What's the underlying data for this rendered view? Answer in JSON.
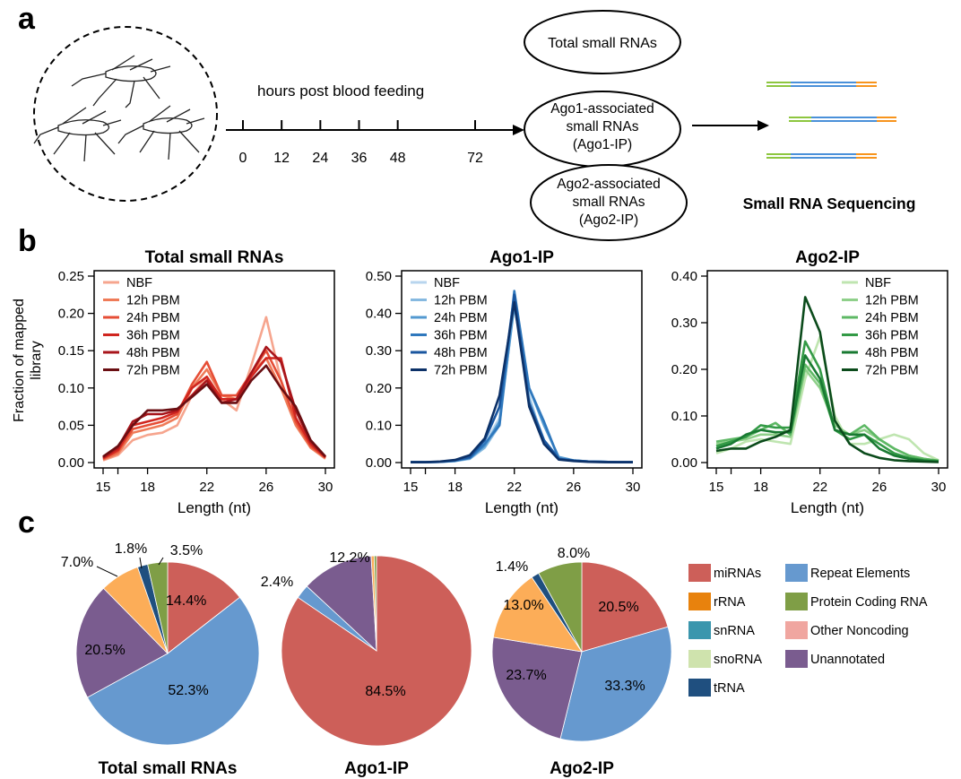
{
  "panel_labels": {
    "a": "a",
    "b": "b",
    "c": "c"
  },
  "schematic": {
    "timeline_label": "hours post blood feeding",
    "ticks": [
      "0",
      "12",
      "24",
      "36",
      "48",
      "72"
    ],
    "tick_values": [
      0,
      12,
      24,
      36,
      48,
      72
    ],
    "boxes": [
      [
        "Total small RNAs"
      ],
      [
        "Ago1-associated",
        "small RNAs",
        "(Ago1-IP)"
      ],
      [
        "Ago2-associated",
        "small RNAs",
        "(Ago2-IP)"
      ]
    ],
    "seq_label": "Small RNA Sequencing"
  },
  "colors": {
    "mirna": "#cd5f59",
    "rrna": "#e8820d",
    "snrna": "#3a96ad",
    "snorna": "#cfe3ad",
    "trna": "#1f4f7f",
    "repeat": "#6699cf",
    "protein_coding": "#7f9e46",
    "other_noncoding": "#f0a6a0",
    "unannotated": "#7a5c8f",
    "other": "#fcad58",
    "red_series": [
      "#f6a58e",
      "#ef7b58",
      "#e64e36",
      "#d0261f",
      "#a8151b",
      "#6a0e12"
    ],
    "blue_series": [
      "#b8d5ee",
      "#86b9e0",
      "#5399d0",
      "#2f78bd",
      "#1a569f",
      "#0c3168"
    ],
    "green_series": [
      "#bfe5b0",
      "#8fd08a",
      "#5eb865",
      "#339a46",
      "#197a32",
      "#0b4b1b"
    ]
  },
  "chart_data": [
    {
      "type": "line",
      "title": "Total small RNAs",
      "xlabel": "Length (nt)",
      "ylabel": "Fraction of mapped library",
      "x": [
        15,
        16,
        17,
        18,
        19,
        20,
        21,
        22,
        23,
        24,
        25,
        26,
        27,
        28,
        29,
        30
      ],
      "xticks": [
        15,
        18,
        22,
        26,
        30
      ],
      "ylim": [
        0,
        0.25
      ],
      "yticks": [
        "0.00",
        "0.05",
        "0.10",
        "0.15",
        "0.20",
        "0.25"
      ],
      "legend": "top-left",
      "series": [
        {
          "name": "NBF",
          "values": [
            0.003,
            0.01,
            0.03,
            0.037,
            0.04,
            0.05,
            0.09,
            0.115,
            0.085,
            0.07,
            0.13,
            0.195,
            0.11,
            0.055,
            0.02,
            0.005
          ]
        },
        {
          "name": "12h PBM",
          "values": [
            0.004,
            0.012,
            0.04,
            0.045,
            0.05,
            0.06,
            0.1,
            0.125,
            0.09,
            0.085,
            0.12,
            0.14,
            0.1,
            0.05,
            0.02,
            0.006
          ]
        },
        {
          "name": "24h PBM",
          "values": [
            0.005,
            0.015,
            0.045,
            0.05,
            0.055,
            0.065,
            0.105,
            0.135,
            0.09,
            0.09,
            0.12,
            0.15,
            0.11,
            0.055,
            0.022,
            0.007
          ]
        },
        {
          "name": "36h PBM",
          "values": [
            0.006,
            0.017,
            0.05,
            0.055,
            0.06,
            0.068,
            0.1,
            0.115,
            0.085,
            0.085,
            0.115,
            0.14,
            0.14,
            0.06,
            0.025,
            0.007
          ]
        },
        {
          "name": "48h PBM",
          "values": [
            0.007,
            0.02,
            0.055,
            0.065,
            0.065,
            0.07,
            0.09,
            0.11,
            0.08,
            0.085,
            0.12,
            0.155,
            0.135,
            0.07,
            0.028,
            0.008
          ]
        },
        {
          "name": "72h PBM",
          "values": [
            0.008,
            0.022,
            0.05,
            0.07,
            0.07,
            0.072,
            0.088,
            0.105,
            0.08,
            0.08,
            0.11,
            0.13,
            0.1,
            0.075,
            0.03,
            0.008
          ]
        }
      ]
    },
    {
      "type": "line",
      "title": "Ago1-IP",
      "xlabel": "Length (nt)",
      "x": [
        15,
        16,
        17,
        18,
        19,
        20,
        21,
        22,
        23,
        24,
        25,
        26,
        27,
        28,
        29,
        30
      ],
      "xticks": [
        15,
        18,
        22,
        26,
        30
      ],
      "ylim": [
        0,
        0.5
      ],
      "yticks": [
        "0.00",
        "0.10",
        "0.20",
        "0.30",
        "0.40",
        "0.50"
      ],
      "legend": "top-left",
      "series": [
        {
          "name": "NBF",
          "values": [
            0.001,
            0.001,
            0.002,
            0.005,
            0.01,
            0.05,
            0.12,
            0.44,
            0.18,
            0.05,
            0.01,
            0.005,
            0.003,
            0.002,
            0.001,
            0.001
          ]
        },
        {
          "name": "12h PBM",
          "values": [
            0.001,
            0.001,
            0.002,
            0.004,
            0.01,
            0.04,
            0.1,
            0.43,
            0.17,
            0.06,
            0.012,
            0.005,
            0.003,
            0.002,
            0.001,
            0.001
          ]
        },
        {
          "name": "24h PBM",
          "values": [
            0.001,
            0.001,
            0.002,
            0.004,
            0.012,
            0.045,
            0.11,
            0.42,
            0.2,
            0.1,
            0.015,
            0.006,
            0.003,
            0.002,
            0.001,
            0.001
          ]
        },
        {
          "name": "36h PBM",
          "values": [
            0.001,
            0.001,
            0.002,
            0.005,
            0.012,
            0.05,
            0.1,
            0.46,
            0.2,
            0.11,
            0.01,
            0.006,
            0.003,
            0.002,
            0.001,
            0.001
          ]
        },
        {
          "name": "48h PBM",
          "values": [
            0.001,
            0.001,
            0.002,
            0.006,
            0.015,
            0.06,
            0.15,
            0.45,
            0.16,
            0.06,
            0.01,
            0.005,
            0.003,
            0.002,
            0.001,
            0.001
          ]
        },
        {
          "name": "72h PBM",
          "values": [
            0.001,
            0.001,
            0.003,
            0.007,
            0.02,
            0.065,
            0.18,
            0.43,
            0.15,
            0.05,
            0.008,
            0.004,
            0.002,
            0.001,
            0.001,
            0.001
          ]
        }
      ]
    },
    {
      "type": "line",
      "title": "Ago2-IP",
      "xlabel": "Length (nt)",
      "x": [
        15,
        16,
        17,
        18,
        19,
        20,
        21,
        22,
        23,
        24,
        25,
        26,
        27,
        28,
        29,
        30
      ],
      "xticks": [
        15,
        18,
        22,
        26,
        30
      ],
      "ylim": [
        0,
        0.4
      ],
      "yticks": [
        "0.00",
        "0.10",
        "0.20",
        "0.30",
        "0.40"
      ],
      "legend": "top-right",
      "series": [
        {
          "name": "NBF",
          "values": [
            0.02,
            0.03,
            0.045,
            0.05,
            0.045,
            0.04,
            0.18,
            0.27,
            0.1,
            0.04,
            0.04,
            0.05,
            0.06,
            0.05,
            0.02,
            0.005
          ]
        },
        {
          "name": "12h PBM",
          "values": [
            0.04,
            0.045,
            0.05,
            0.06,
            0.06,
            0.055,
            0.2,
            0.16,
            0.08,
            0.06,
            0.07,
            0.05,
            0.03,
            0.015,
            0.008,
            0.004
          ]
        },
        {
          "name": "24h PBM",
          "values": [
            0.045,
            0.05,
            0.055,
            0.07,
            0.085,
            0.06,
            0.21,
            0.17,
            0.07,
            0.06,
            0.08,
            0.05,
            0.03,
            0.015,
            0.008,
            0.004
          ]
        },
        {
          "name": "36h PBM",
          "values": [
            0.035,
            0.045,
            0.055,
            0.08,
            0.075,
            0.075,
            0.26,
            0.2,
            0.07,
            0.05,
            0.06,
            0.04,
            0.02,
            0.01,
            0.005,
            0.003
          ]
        },
        {
          "name": "48h PBM",
          "values": [
            0.03,
            0.04,
            0.06,
            0.07,
            0.065,
            0.065,
            0.23,
            0.18,
            0.07,
            0.06,
            0.06,
            0.03,
            0.015,
            0.008,
            0.004,
            0.002
          ]
        },
        {
          "name": "72h PBM",
          "values": [
            0.025,
            0.03,
            0.03,
            0.045,
            0.055,
            0.07,
            0.355,
            0.28,
            0.09,
            0.04,
            0.02,
            0.01,
            0.005,
            0.003,
            0.002,
            0.001
          ]
        }
      ]
    },
    {
      "type": "pie",
      "title": "Total small RNAs",
      "slices": [
        {
          "key": "mirna",
          "value": 14.4,
          "label": "14.4%"
        },
        {
          "key": "repeat",
          "value": 52.3,
          "label": "52.3%"
        },
        {
          "key": "unannotated",
          "value": 20.5,
          "label": "20.5%"
        },
        {
          "key": "other",
          "value": 7.0,
          "label": "7.0%"
        },
        {
          "key": "trna",
          "value": 1.8,
          "label": "1.8%"
        },
        {
          "key": "protein_coding",
          "value": 3.5,
          "label": "3.5%"
        }
      ]
    },
    {
      "type": "pie",
      "title": "Ago1-IP",
      "slices": [
        {
          "key": "mirna",
          "value": 84.5,
          "label": "84.5%"
        },
        {
          "key": "repeat",
          "value": 2.4,
          "label": "2.4%"
        },
        {
          "key": "unannotated",
          "value": 12.2,
          "label": "12.2%"
        },
        {
          "key": "other",
          "value": 0.5,
          "label": ""
        },
        {
          "key": "protein_coding",
          "value": 0.4,
          "label": ""
        }
      ]
    },
    {
      "type": "pie",
      "title": "Ago2-IP",
      "slices": [
        {
          "key": "mirna",
          "value": 20.5,
          "label": "20.5%"
        },
        {
          "key": "repeat",
          "value": 33.3,
          "label": "33.3%"
        },
        {
          "key": "unannotated",
          "value": 23.7,
          "label": "23.7%"
        },
        {
          "key": "other",
          "value": 13.0,
          "label": "13.0%"
        },
        {
          "key": "trna",
          "value": 1.4,
          "label": "1.4%"
        },
        {
          "key": "protein_coding",
          "value": 8.0,
          "label": "8.0%"
        }
      ]
    }
  ],
  "pie_legend": [
    {
      "key": "mirna",
      "label": "miRNAs"
    },
    {
      "key": "rrna",
      "label": "rRNA"
    },
    {
      "key": "snrna",
      "label": "snRNA"
    },
    {
      "key": "snorna",
      "label": "snoRNA"
    },
    {
      "key": "trna",
      "label": "tRNA"
    },
    {
      "key": "repeat",
      "label": "Repeat Elements"
    },
    {
      "key": "protein_coding",
      "label": "Protein Coding RNA"
    },
    {
      "key": "other_noncoding",
      "label": "Other Noncoding"
    },
    {
      "key": "unannotated",
      "label": "Unannotated"
    }
  ]
}
